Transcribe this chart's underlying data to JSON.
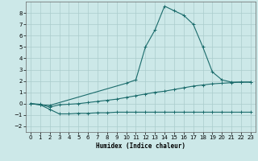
{
  "xlabel": "Humidex (Indice chaleur)",
  "bg_color": "#cce8e8",
  "grid_color": "#aacccc",
  "line_color": "#1a6b6b",
  "xlim": [
    -0.5,
    23.5
  ],
  "ylim": [
    -2.5,
    9.0
  ],
  "xticks": [
    0,
    1,
    2,
    3,
    4,
    5,
    6,
    7,
    8,
    9,
    10,
    11,
    12,
    13,
    14,
    15,
    16,
    17,
    18,
    19,
    20,
    21,
    22,
    23
  ],
  "yticks": [
    -2,
    -1,
    0,
    1,
    2,
    3,
    4,
    5,
    6,
    7,
    8
  ],
  "series1_x": [
    0,
    1,
    2,
    3,
    4,
    5,
    6,
    7,
    8,
    9,
    10,
    11,
    12,
    13,
    14,
    15,
    16,
    17,
    18,
    19,
    20,
    21,
    22,
    23
  ],
  "series1_y": [
    0.0,
    -0.1,
    -0.5,
    -0.9,
    -0.9,
    -0.85,
    -0.85,
    -0.8,
    -0.8,
    -0.75,
    -0.75,
    -0.75,
    -0.75,
    -0.75,
    -0.75,
    -0.75,
    -0.75,
    -0.75,
    -0.75,
    -0.75,
    -0.75,
    -0.75,
    -0.75,
    -0.75
  ],
  "series2_x": [
    0,
    1,
    2,
    3,
    4,
    5,
    6,
    7,
    8,
    9,
    10,
    11,
    12,
    13,
    14,
    15,
    16,
    17,
    18,
    19,
    20,
    21,
    22,
    23
  ],
  "series2_y": [
    0.0,
    -0.05,
    -0.3,
    -0.1,
    -0.05,
    0.0,
    0.1,
    0.2,
    0.3,
    0.4,
    0.55,
    0.7,
    0.85,
    1.0,
    1.1,
    1.25,
    1.4,
    1.55,
    1.65,
    1.75,
    1.8,
    1.85,
    1.9,
    1.9
  ],
  "series3_x": [
    0,
    1,
    2,
    10,
    11,
    12,
    13,
    14,
    15,
    16,
    17,
    18,
    19,
    20,
    21,
    22,
    23
  ],
  "series3_y": [
    0.0,
    -0.1,
    -0.15,
    1.8,
    2.1,
    5.0,
    6.5,
    8.6,
    8.2,
    7.8,
    7.0,
    5.0,
    2.8,
    2.1,
    1.9,
    1.9,
    1.9
  ]
}
